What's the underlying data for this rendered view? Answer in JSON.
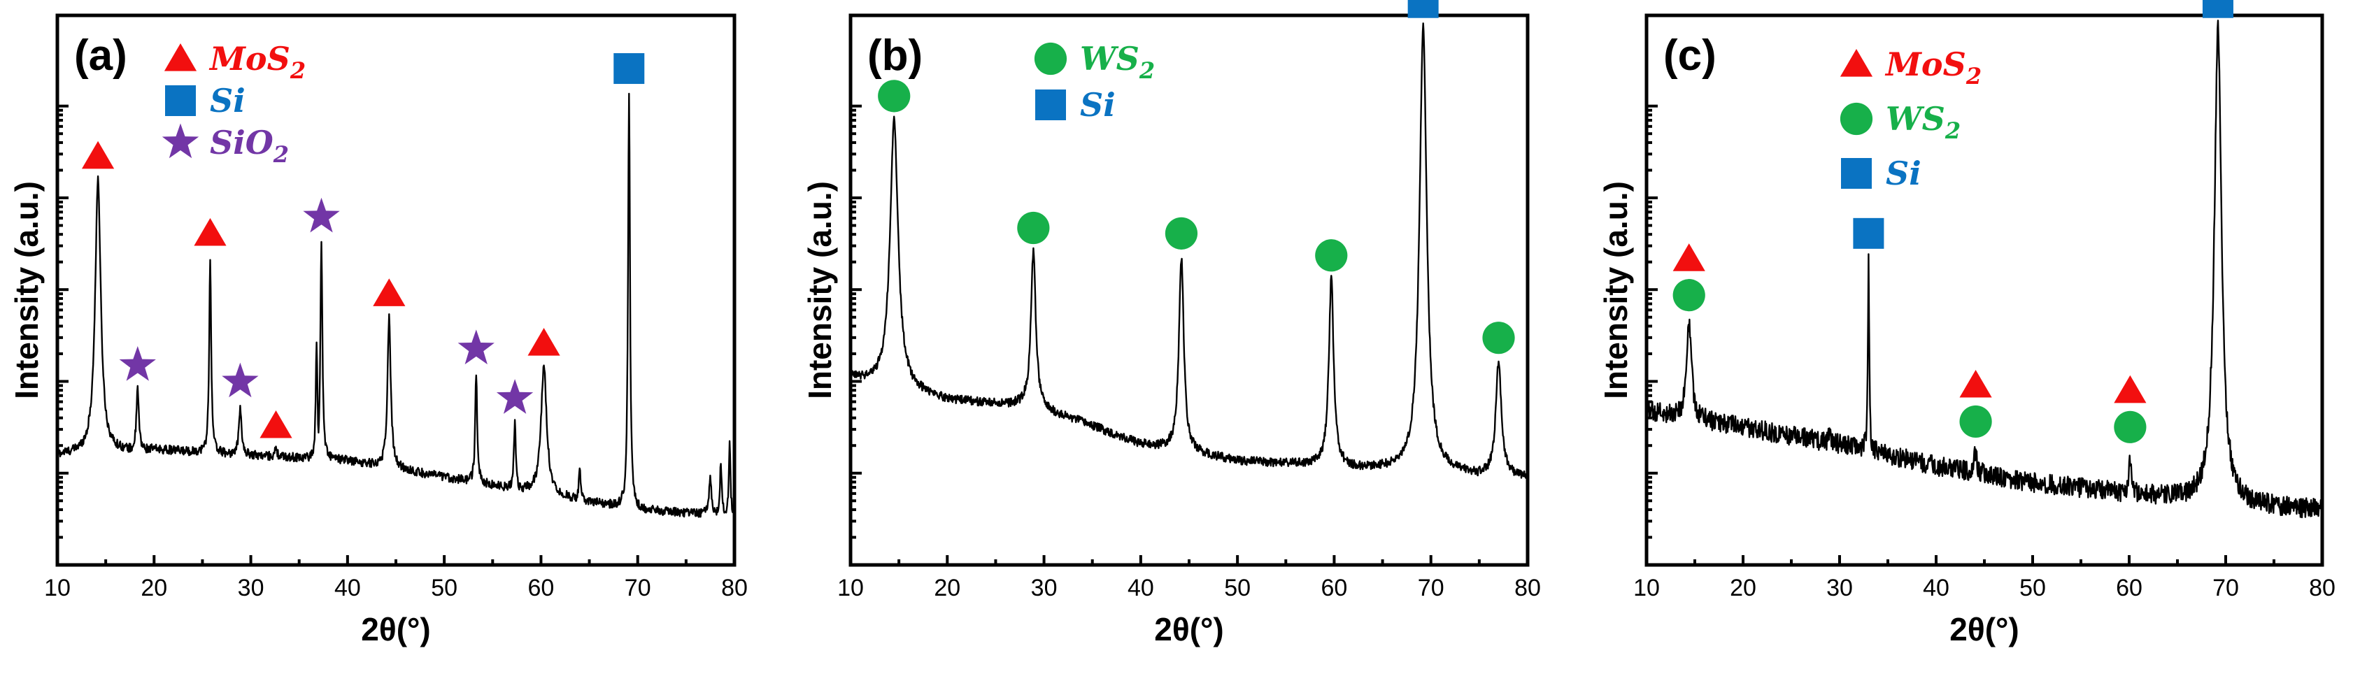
{
  "colors": {
    "MoS2": "#f20f0f",
    "WS2": "#17b04a",
    "Si": "#0a73c2",
    "SiO2": "#7236a6",
    "trace": "#000000"
  },
  "chart_data": [
    {
      "type": "line",
      "panel_label": "(a)",
      "xlabel": "2θ(°)",
      "ylabel": "Intensity (a.u.)",
      "xlim": [
        10,
        80
      ],
      "xticks": [
        10,
        20,
        30,
        40,
        50,
        60,
        70,
        80
      ],
      "yscale": "log",
      "ytick_labels_shown": false,
      "legend": [
        {
          "marker": "triangle",
          "phase": "MoS2",
          "label": "MoS",
          "sub": "2"
        },
        {
          "marker": "square",
          "phase": "Si",
          "label": "Si",
          "sub": ""
        },
        {
          "marker": "star",
          "phase": "SiO2",
          "label": "SiO",
          "sub": "2"
        }
      ],
      "baseline": [
        [
          10,
          0.2
        ],
        [
          20,
          0.21
        ],
        [
          30,
          0.2
        ],
        [
          40,
          0.19
        ],
        [
          50,
          0.16
        ],
        [
          60,
          0.13
        ],
        [
          70,
          0.1
        ],
        [
          80,
          0.09
        ]
      ],
      "peaks": [
        {
          "x": 14.2,
          "y": 0.7,
          "w": 0.35,
          "phase": "MoS2",
          "marked": true
        },
        {
          "x": 18.3,
          "y": 0.32,
          "w": 0.15,
          "phase": "SiO2",
          "marked": true
        },
        {
          "x": 25.8,
          "y": 0.56,
          "w": 0.12,
          "phase": "MoS2",
          "marked": true
        },
        {
          "x": 28.9,
          "y": 0.29,
          "w": 0.15,
          "phase": "SiO2",
          "marked": true
        },
        {
          "x": 32.6,
          "y": 0.21,
          "w": 0.15,
          "phase": "MoS2",
          "marked": true
        },
        {
          "x": 36.8,
          "y": 0.41,
          "w": 0.1,
          "phase": "SiO2",
          "marked": false
        },
        {
          "x": 37.3,
          "y": 0.59,
          "w": 0.12,
          "phase": "SiO2",
          "marked": true
        },
        {
          "x": 44.3,
          "y": 0.45,
          "w": 0.2,
          "phase": "MoS2",
          "marked": true
        },
        {
          "x": 53.3,
          "y": 0.35,
          "w": 0.12,
          "phase": "SiO2",
          "marked": true
        },
        {
          "x": 57.3,
          "y": 0.26,
          "w": 0.12,
          "phase": "SiO2",
          "marked": true
        },
        {
          "x": 60.3,
          "y": 0.36,
          "w": 0.35,
          "phase": "MoS2",
          "marked": true
        },
        {
          "x": 64.0,
          "y": 0.18,
          "w": 0.1,
          "phase": "",
          "marked": false
        },
        {
          "x": 69.1,
          "y": 0.86,
          "w": 0.12,
          "phase": "Si",
          "marked": true
        },
        {
          "x": 77.5,
          "y": 0.16,
          "w": 0.15,
          "phase": "",
          "marked": false
        },
        {
          "x": 78.6,
          "y": 0.19,
          "w": 0.1,
          "phase": "",
          "marked": false
        },
        {
          "x": 79.5,
          "y": 0.22,
          "w": 0.1,
          "phase": "",
          "marked": false
        }
      ]
    },
    {
      "type": "line",
      "panel_label": "(b)",
      "xlabel": "2θ(°)",
      "ylabel": "Intensity (a.u.)",
      "xlim": [
        10,
        80
      ],
      "xticks": [
        10,
        20,
        30,
        40,
        50,
        60,
        70,
        80
      ],
      "yscale": "log",
      "ytick_labels_shown": false,
      "legend": [
        {
          "marker": "circle",
          "phase": "WS2",
          "label": "WS",
          "sub": "2"
        },
        {
          "marker": "square",
          "phase": "Si",
          "label": "Si",
          "sub": ""
        }
      ],
      "baseline": [
        [
          10,
          0.34
        ],
        [
          20,
          0.3
        ],
        [
          28,
          0.29
        ],
        [
          34,
          0.26
        ],
        [
          40,
          0.22
        ],
        [
          50,
          0.19
        ],
        [
          60,
          0.18
        ],
        [
          70,
          0.17
        ],
        [
          80,
          0.16
        ]
      ],
      "peaks": [
        {
          "x": 14.5,
          "y": 0.81,
          "w": 0.5,
          "phase": "WS2",
          "marked": true
        },
        {
          "x": 28.9,
          "y": 0.57,
          "w": 0.3,
          "phase": "WS2",
          "marked": true
        },
        {
          "x": 30.0,
          "y": 0.28,
          "w": 0.1,
          "phase": "",
          "marked": false
        },
        {
          "x": 39.6,
          "y": 0.22,
          "w": 0.15,
          "phase": "",
          "marked": false
        },
        {
          "x": 44.2,
          "y": 0.56,
          "w": 0.3,
          "phase": "WS2",
          "marked": true
        },
        {
          "x": 59.7,
          "y": 0.52,
          "w": 0.3,
          "phase": "WS2",
          "marked": true
        },
        {
          "x": 69.2,
          "y": 0.98,
          "w": 0.45,
          "phase": "Si",
          "marked": true
        },
        {
          "x": 77.0,
          "y": 0.37,
          "w": 0.35,
          "phase": "WS2",
          "marked": true
        }
      ]
    },
    {
      "type": "line",
      "panel_label": "(c)",
      "xlabel": "2θ(°)",
      "ylabel": "Intensity (a.u.)",
      "xlim": [
        10,
        80
      ],
      "xticks": [
        10,
        20,
        30,
        40,
        50,
        60,
        70,
        80
      ],
      "yscale": "log",
      "ytick_labels_shown": false,
      "legend": [
        {
          "marker": "triangle",
          "phase": "MoS2",
          "label": "MoS",
          "sub": "2"
        },
        {
          "marker": "circle",
          "phase": "WS2",
          "label": "WS",
          "sub": "2"
        },
        {
          "marker": "square",
          "phase": "Si",
          "label": "Si",
          "sub": ""
        }
      ],
      "baseline": [
        [
          10,
          0.28
        ],
        [
          20,
          0.25
        ],
        [
          30,
          0.22
        ],
        [
          40,
          0.18
        ],
        [
          50,
          0.15
        ],
        [
          60,
          0.13
        ],
        [
          70,
          0.11
        ],
        [
          80,
          0.1
        ]
      ],
      "peaks": [
        {
          "x": 14.4,
          "y": 0.44,
          "w": 0.3,
          "phase": "MoS2/WS2",
          "marked": true
        },
        {
          "x": 29.0,
          "y": 0.25,
          "w": 0.1,
          "phase": "",
          "marked": false
        },
        {
          "x": 33.0,
          "y": 0.56,
          "w": 0.08,
          "phase": "Si",
          "marked": true
        },
        {
          "x": 44.1,
          "y": 0.21,
          "w": 0.15,
          "phase": "MoS2/WS2",
          "marked": true
        },
        {
          "x": 60.1,
          "y": 0.2,
          "w": 0.15,
          "phase": "MoS2/WS2",
          "marked": true
        },
        {
          "x": 69.2,
          "y": 0.98,
          "w": 0.45,
          "phase": "Si",
          "marked": true
        }
      ]
    }
  ]
}
